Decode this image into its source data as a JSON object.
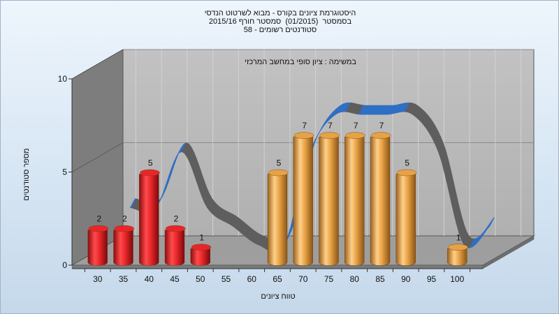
{
  "chart_data": {
    "type": "bar",
    "title_lines": [
      "היסטוגרמת ציונים בקורס - מבוא לשרטוט הנדסי",
      "בסמסטר  (01/2015)  סמסטר חורף 2015/16",
      "סטודנטים רשומים - 58"
    ],
    "subtitle": "במשימה : ציון סופי במחשב המרכזי",
    "xlabel": "טווח ציונים",
    "ylabel": "מספר סטודנטים",
    "ylim": [
      0,
      10
    ],
    "yticks": [
      0,
      5,
      10
    ],
    "categories": [
      "30",
      "35",
      "40",
      "45",
      "50",
      "55",
      "60",
      "65",
      "70",
      "75",
      "80",
      "85",
      "90",
      "95",
      "100"
    ],
    "values": [
      2,
      2,
      5,
      2,
      1,
      0,
      0,
      5,
      7,
      7,
      7,
      7,
      5,
      0,
      1
    ],
    "labels": [
      "2",
      "2",
      "5",
      "2",
      "1",
      "",
      "",
      "5",
      "7",
      "7",
      "7",
      "7",
      "5",
      "",
      "1"
    ],
    "bar_colors": {
      "fail": "#e8262a",
      "pass": "#e7a246"
    },
    "pass_from_index": 7,
    "trend": {
      "colors": {
        "front": "#2f6fc4",
        "back": "#5e5e5e"
      }
    },
    "grid": true,
    "legend": "none"
  }
}
